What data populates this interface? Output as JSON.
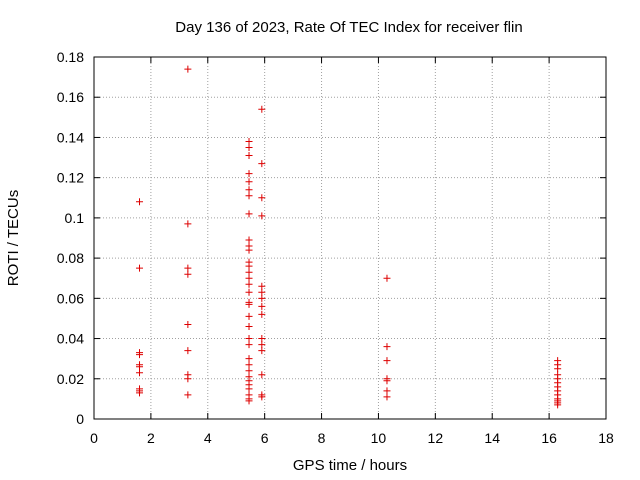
{
  "chart_data": {
    "type": "scatter",
    "title": "Day 136 of 2023, Rate Of TEC Index for receiver flin",
    "xlabel": "GPS time / hours",
    "ylabel": "ROTI / TECUs",
    "xlim": [
      0,
      18
    ],
    "ylim": [
      0,
      0.18
    ],
    "xticks": [
      0,
      2,
      4,
      6,
      8,
      10,
      12,
      14,
      16,
      18
    ],
    "yticks": [
      0,
      0.02,
      0.04,
      0.06,
      0.08,
      0.1,
      0.12,
      0.14,
      0.16,
      0.18
    ],
    "xtick_labels": [
      "0",
      "2",
      "4",
      "6",
      "8",
      "10",
      "12",
      "14",
      "16",
      "18"
    ],
    "ytick_labels": [
      "0",
      "0.02",
      "0.04",
      "0.06",
      "0.08",
      "0.1",
      "0.12",
      "0.14",
      "0.16",
      "0.18"
    ],
    "grid": true,
    "marker": "+",
    "color": "#dd0000",
    "series": [
      {
        "points": [
          [
            1.6,
            0.108
          ],
          [
            1.6,
            0.075
          ],
          [
            1.6,
            0.033
          ],
          [
            1.6,
            0.032
          ],
          [
            1.6,
            0.027
          ],
          [
            1.6,
            0.026
          ],
          [
            1.6,
            0.023
          ],
          [
            1.6,
            0.015
          ],
          [
            1.6,
            0.014
          ],
          [
            1.6,
            0.013
          ],
          [
            3.3,
            0.174
          ],
          [
            3.3,
            0.097
          ],
          [
            3.3,
            0.075
          ],
          [
            3.3,
            0.072
          ],
          [
            3.3,
            0.047
          ],
          [
            3.3,
            0.034
          ],
          [
            3.3,
            0.022
          ],
          [
            3.3,
            0.02
          ],
          [
            3.3,
            0.012
          ],
          [
            5.45,
            0.138
          ],
          [
            5.45,
            0.135
          ],
          [
            5.45,
            0.131
          ],
          [
            5.45,
            0.122
          ],
          [
            5.45,
            0.118
          ],
          [
            5.45,
            0.114
          ],
          [
            5.45,
            0.111
          ],
          [
            5.45,
            0.102
          ],
          [
            5.45,
            0.089
          ],
          [
            5.45,
            0.086
          ],
          [
            5.45,
            0.084
          ],
          [
            5.45,
            0.078
          ],
          [
            5.45,
            0.076
          ],
          [
            5.45,
            0.073
          ],
          [
            5.45,
            0.07
          ],
          [
            5.45,
            0.067
          ],
          [
            5.45,
            0.063
          ],
          [
            5.45,
            0.058
          ],
          [
            5.45,
            0.057
          ],
          [
            5.45,
            0.051
          ],
          [
            5.45,
            0.046
          ],
          [
            5.45,
            0.04
          ],
          [
            5.45,
            0.037
          ],
          [
            5.45,
            0.03
          ],
          [
            5.45,
            0.027
          ],
          [
            5.45,
            0.024
          ],
          [
            5.45,
            0.021
          ],
          [
            5.45,
            0.019
          ],
          [
            5.45,
            0.017
          ],
          [
            5.45,
            0.015
          ],
          [
            5.45,
            0.012
          ],
          [
            5.45,
            0.01
          ],
          [
            5.45,
            0.009
          ],
          [
            5.9,
            0.154
          ],
          [
            5.9,
            0.127
          ],
          [
            5.9,
            0.11
          ],
          [
            5.9,
            0.101
          ],
          [
            5.9,
            0.066
          ],
          [
            5.9,
            0.063
          ],
          [
            5.9,
            0.06
          ],
          [
            5.9,
            0.056
          ],
          [
            5.9,
            0.052
          ],
          [
            5.9,
            0.04
          ],
          [
            5.9,
            0.037
          ],
          [
            5.9,
            0.034
          ],
          [
            5.9,
            0.022
          ],
          [
            5.9,
            0.012
          ],
          [
            5.9,
            0.011
          ],
          [
            10.3,
            0.07
          ],
          [
            10.3,
            0.036
          ],
          [
            10.3,
            0.029
          ],
          [
            10.3,
            0.02
          ],
          [
            10.3,
            0.019
          ],
          [
            10.3,
            0.014
          ],
          [
            10.3,
            0.011
          ],
          [
            16.3,
            0.029
          ],
          [
            16.3,
            0.027
          ],
          [
            16.3,
            0.025
          ],
          [
            16.3,
            0.022
          ],
          [
            16.3,
            0.02
          ],
          [
            16.3,
            0.018
          ],
          [
            16.3,
            0.016
          ],
          [
            16.3,
            0.014
          ],
          [
            16.3,
            0.012
          ],
          [
            16.3,
            0.01
          ],
          [
            16.3,
            0.009
          ],
          [
            16.3,
            0.008
          ],
          [
            16.3,
            0.007
          ]
        ]
      }
    ]
  }
}
